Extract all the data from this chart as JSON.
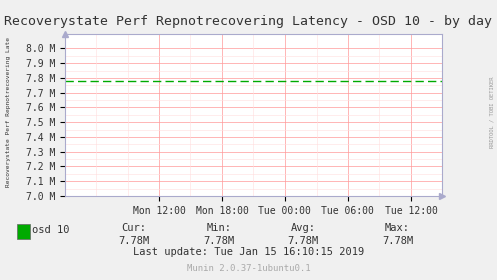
{
  "title": "Recoverystate Perf Repnotrecovering Latency - OSD 10 - by day",
  "ylabel": "Recoverystate Perf Repnotrecovering Late",
  "right_label": "RRDTOOL / TOBI OETIKER",
  "bg_color": "#f0f0f0",
  "plot_bg_color": "#ffffff",
  "grid_color_major": "#ff9999",
  "grid_color_minor": "#ffdddd",
  "line_color": "#00aa00",
  "line_value": 7780000,
  "ylim_min": 7000000,
  "ylim_max": 8100000,
  "ytick_labels": [
    "7.0 M",
    "7.1 M",
    "7.2 M",
    "7.3 M",
    "7.4 M",
    "7.5 M",
    "7.6 M",
    "7.7 M",
    "7.8 M",
    "7.9 M",
    "8.0 M"
  ],
  "ytick_values": [
    7000000,
    7100000,
    7200000,
    7300000,
    7400000,
    7500000,
    7600000,
    7700000,
    7800000,
    7900000,
    8000000
  ],
  "xtick_labels": [
    "Mon 12:00",
    "Mon 18:00",
    "Tue 00:00",
    "Tue 06:00",
    "Tue 12:00"
  ],
  "xtick_positions": [
    0.25,
    0.417,
    0.583,
    0.75,
    0.917
  ],
  "legend_label": "osd 10",
  "legend_color": "#00aa00",
  "cur_label": "Cur:",
  "cur_value": "7.78M",
  "min_label": "Min:",
  "min_value": "7.78M",
  "avg_label": "Avg:",
  "avg_value": "7.78M",
  "max_label": "Max:",
  "max_value": "7.78M",
  "last_update": "Last update: Tue Jan 15 16:10:15 2019",
  "munin_text": "Munin 2.0.37-1ubuntu0.1",
  "title_fontsize": 9.5,
  "axis_fontsize": 7,
  "legend_fontsize": 7.5,
  "small_fontsize": 6.5
}
